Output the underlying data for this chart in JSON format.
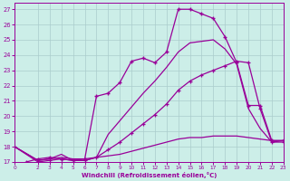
{
  "title": "Windchill (Refroidissement éolien,°C)",
  "bg_color": "#cceee8",
  "line_color": "#990099",
  "grid_color": "#aacccc",
  "xlim": [
    0,
    23
  ],
  "ylim": [
    17,
    27.4
  ],
  "xticks": [
    0,
    2,
    3,
    4,
    5,
    6,
    7,
    8,
    9,
    10,
    11,
    12,
    13,
    14,
    15,
    16,
    17,
    18,
    19,
    20,
    21,
    22,
    23
  ],
  "yticks": [
    17,
    18,
    19,
    20,
    21,
    22,
    23,
    24,
    25,
    26,
    27
  ],
  "lines": [
    {
      "x": [
        1,
        2,
        3,
        4,
        5,
        6,
        7,
        8,
        9,
        10,
        11,
        12,
        13,
        14,
        15,
        16,
        17,
        18,
        19,
        20,
        21,
        22,
        23
      ],
      "y": [
        17,
        17.2,
        17.3,
        17.2,
        17.1,
        17.2,
        21.3,
        21.5,
        22.2,
        23.6,
        23.8,
        23.5,
        24.2,
        27.0,
        27.0,
        26.7,
        26.4,
        25.2,
        23.5,
        20.7,
        20.7,
        18.4,
        18.4
      ],
      "marker": "+",
      "ms": 3.5,
      "mew": 1.0,
      "lw": 0.9
    },
    {
      "x": [
        0,
        2,
        3,
        4,
        5,
        6,
        7,
        8,
        9,
        10,
        11,
        12,
        13,
        14,
        15,
        16,
        17,
        18,
        19,
        20,
        21,
        22,
        23
      ],
      "y": [
        18,
        17.1,
        17.2,
        17.5,
        17.1,
        17.1,
        17.3,
        18.8,
        19.7,
        20.6,
        21.5,
        22.3,
        23.2,
        24.2,
        24.8,
        24.9,
        25.0,
        24.4,
        23.4,
        20.5,
        19.2,
        18.3,
        18.4
      ],
      "marker": null,
      "lw": 0.9
    },
    {
      "x": [
        0,
        2,
        3,
        4,
        5,
        6,
        7,
        8,
        9,
        10,
        11,
        12,
        13,
        14,
        15,
        16,
        17,
        18,
        19,
        20,
        21,
        22,
        23
      ],
      "y": [
        18,
        17,
        17.1,
        17.2,
        17.1,
        17.1,
        17.3,
        17.8,
        18.3,
        18.9,
        19.5,
        20.1,
        20.8,
        21.7,
        22.3,
        22.7,
        23.0,
        23.3,
        23.6,
        23.5,
        20.5,
        18.3,
        18.3
      ],
      "marker": "+",
      "ms": 3.0,
      "mew": 0.9,
      "lw": 0.9
    },
    {
      "x": [
        0,
        2,
        3,
        4,
        5,
        6,
        7,
        8,
        9,
        10,
        11,
        12,
        13,
        14,
        15,
        16,
        17,
        18,
        19,
        20,
        21,
        22,
        23
      ],
      "y": [
        18,
        17.1,
        17.2,
        17.3,
        17.2,
        17.2,
        17.3,
        17.4,
        17.5,
        17.7,
        17.9,
        18.1,
        18.3,
        18.5,
        18.6,
        18.6,
        18.7,
        18.7,
        18.7,
        18.6,
        18.5,
        18.4,
        18.4
      ],
      "marker": null,
      "lw": 0.9
    }
  ]
}
